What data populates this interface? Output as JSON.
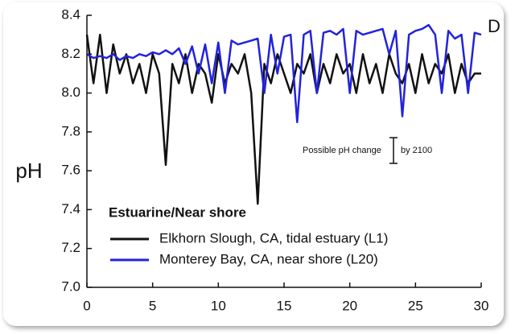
{
  "chart_data": {
    "type": "line",
    "panel_label": "D",
    "ylabel": "pH",
    "legend_title": "Estuarine/Near shore",
    "annotations": [
      "Possible pH change",
      "by 2100"
    ],
    "x": [
      0,
      0.5,
      1,
      1.5,
      2,
      2.5,
      3,
      3.5,
      4,
      4.5,
      5,
      5.5,
      6,
      6.5,
      7,
      7.5,
      8,
      8.5,
      9,
      9.5,
      10,
      10.5,
      11,
      11.5,
      12,
      12.5,
      13,
      13.5,
      14,
      14.5,
      15,
      15.5,
      16,
      16.5,
      17,
      17.5,
      18,
      18.5,
      19,
      19.5,
      20,
      20.5,
      21,
      21.5,
      22,
      22.5,
      23,
      23.5,
      24,
      24.5,
      25,
      25.5,
      26,
      26.5,
      27,
      27.5,
      28,
      28.5,
      29,
      29.5,
      30
    ],
    "series": [
      {
        "name": "Elkhorn Slough, CA, tidal estuary (L1)",
        "color": "#111111",
        "values": [
          8.3,
          8.05,
          8.3,
          8.0,
          8.25,
          8.1,
          8.2,
          8.05,
          8.15,
          8.0,
          8.2,
          8.1,
          7.63,
          8.15,
          8.05,
          8.2,
          8.0,
          8.15,
          8.1,
          7.95,
          8.2,
          8.05,
          8.15,
          8.1,
          8.2,
          8.0,
          7.43,
          8.15,
          8.05,
          8.2,
          8.1,
          8.0,
          8.15,
          8.1,
          8.2,
          8.0,
          8.15,
          8.05,
          8.2,
          8.1,
          8.15,
          8.0,
          8.2,
          8.05,
          8.15,
          8.0,
          8.2,
          8.1,
          8.05,
          8.15,
          8.0,
          8.2,
          8.05,
          8.15,
          8.1,
          8.2,
          8.0,
          8.15,
          8.05,
          8.1,
          8.1
        ]
      },
      {
        "name": "Monterey Bay, CA, near shore (L20)",
        "color": "#2222dd",
        "values": [
          8.2,
          8.18,
          8.19,
          8.18,
          8.2,
          8.17,
          8.19,
          8.18,
          8.2,
          8.19,
          8.21,
          8.2,
          8.22,
          8.2,
          8.23,
          8.15,
          8.24,
          8.1,
          8.25,
          8.05,
          8.26,
          8.0,
          8.27,
          8.25,
          8.26,
          8.27,
          8.28,
          8.0,
          8.3,
          8.1,
          8.29,
          8.3,
          7.85,
          8.3,
          8.32,
          8.0,
          8.31,
          8.32,
          8.3,
          8.33,
          8.0,
          8.32,
          8.3,
          8.31,
          8.32,
          8.33,
          8.2,
          8.32,
          7.88,
          8.3,
          8.32,
          8.33,
          8.35,
          8.3,
          8.0,
          8.32,
          8.28,
          8.3,
          8.0,
          8.31,
          8.3
        ]
      }
    ],
    "xlim": [
      0,
      30
    ],
    "xticks": [
      0,
      5,
      10,
      15,
      20,
      25,
      30
    ],
    "ylim": [
      7.0,
      8.4
    ],
    "yticks": [
      {
        "value": 7.0,
        "label": "7.0"
      },
      7.2,
      7.4,
      7.6,
      7.8,
      {
        "value": 8.0,
        "label": "8.0"
      },
      8.2,
      8.4
    ]
  }
}
